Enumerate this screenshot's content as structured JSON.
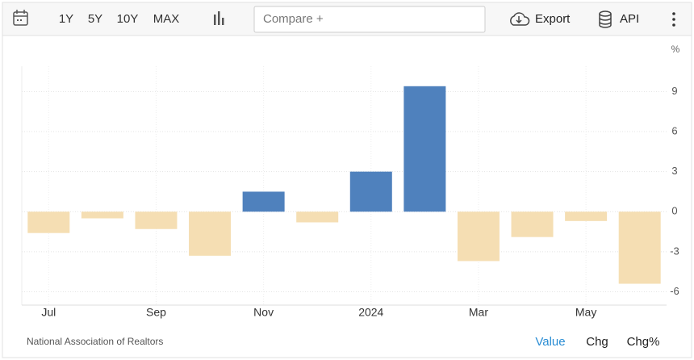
{
  "toolbar": {
    "ranges": [
      "1Y",
      "5Y",
      "10Y",
      "MAX"
    ],
    "compare_placeholder": "Compare +",
    "export": "Export",
    "api": "API"
  },
  "footer": {
    "source": "National Association of Realtors",
    "modes": [
      "Value",
      "Chg",
      "Chg%"
    ]
  },
  "chart_data": {
    "type": "bar",
    "unit": "%",
    "categories": [
      "Jul",
      null,
      "Sep",
      null,
      "Nov",
      null,
      "2024",
      null,
      "Mar",
      null,
      "May",
      null
    ],
    "values": [
      -1.6,
      -0.5,
      -1.3,
      -3.3,
      1.5,
      -0.8,
      3.0,
      9.4,
      -3.7,
      -1.9,
      -0.7,
      -5.4
    ],
    "colors": {
      "positive": "#4f81bd",
      "negative": "#f5deb3"
    },
    "ylim": [
      -7,
      10.9
    ],
    "yticks": [
      -6,
      -3,
      0,
      3,
      6,
      9
    ],
    "grid": true
  }
}
